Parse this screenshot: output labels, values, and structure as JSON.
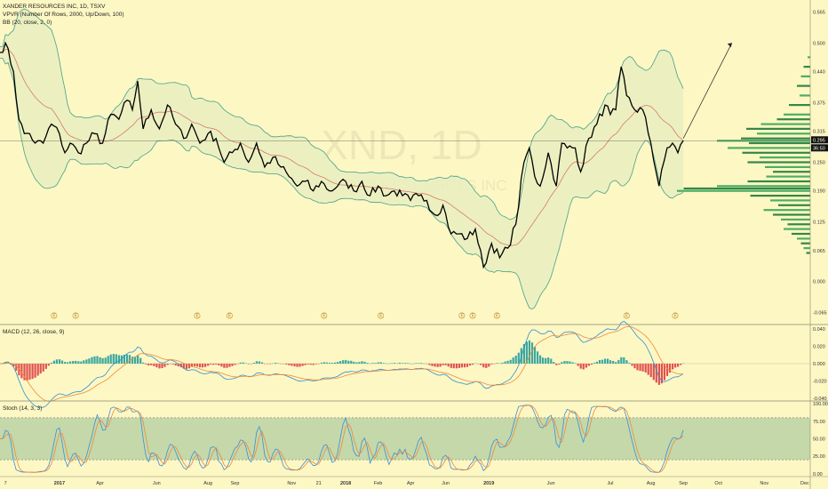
{
  "header": {
    "symbol_line": "XANDER RESOURCES INC, 1D, TSXV",
    "vpvr_line": "VPVR (Number Of Rows, 2000, Up/Down, 100)",
    "bb_line": "BB (20, close, 2, 0)",
    "macd_line": "MACD (12, 26, close, 9)",
    "stoch_line": "Stoch (14, 3, 3)"
  },
  "watermark": {
    "ticker": "XND, 1D",
    "company": "XANDER RESOURCES INC"
  },
  "price_badge": {
    "value": "0.295",
    "countdown": "36:50"
  },
  "earnings_marker": "E",
  "chart_data": [
    {
      "type": "line",
      "pane": "price",
      "title": "XANDER RESOURCES INC, 1D, TSXV",
      "x_ticks": [
        "7",
        "2017",
        "Apr",
        "Jun",
        "Aug",
        "Sep",
        "Nov",
        "21",
        "2018",
        "Feb",
        "Apr",
        "Jun",
        "2019",
        "Jun",
        "Jul",
        "Aug",
        "Sep",
        "Oct",
        "Nov",
        "Dec"
      ],
      "y_ticks": [
        "0.565",
        "0.500",
        "0.440",
        "0.375",
        "0.315",
        "0.250",
        "0.190",
        "0.125",
        "0.065",
        "0.000",
        "-0.065"
      ],
      "ylim": [
        -0.09,
        0.59
      ],
      "x_index_range": [
        0,
        300
      ],
      "close_anchors": [
        [
          0,
          0.48
        ],
        [
          2,
          0.5
        ],
        [
          5,
          0.44
        ],
        [
          7,
          0.34
        ],
        [
          9,
          0.31
        ],
        [
          11,
          0.31
        ],
        [
          13,
          0.29
        ],
        [
          16,
          0.29
        ],
        [
          19,
          0.33
        ],
        [
          22,
          0.31
        ],
        [
          24,
          0.27
        ],
        [
          26,
          0.29
        ],
        [
          29,
          0.27
        ],
        [
          32,
          0.29
        ],
        [
          35,
          0.31
        ],
        [
          38,
          0.29
        ],
        [
          41,
          0.35
        ],
        [
          44,
          0.34
        ],
        [
          47,
          0.38
        ],
        [
          49,
          0.36
        ],
        [
          51,
          0.42
        ],
        [
          53,
          0.32
        ],
        [
          56,
          0.36
        ],
        [
          59,
          0.32
        ],
        [
          62,
          0.37
        ],
        [
          65,
          0.33
        ],
        [
          68,
          0.3
        ],
        [
          71,
          0.33
        ],
        [
          74,
          0.29
        ],
        [
          77,
          0.31
        ],
        [
          80,
          0.3
        ],
        [
          83,
          0.25
        ],
        [
          86,
          0.27
        ],
        [
          89,
          0.29
        ],
        [
          92,
          0.25
        ],
        [
          95,
          0.29
        ],
        [
          98,
          0.24
        ],
        [
          101,
          0.26
        ],
        [
          104,
          0.24
        ],
        [
          107,
          0.22
        ],
        [
          110,
          0.2
        ],
        [
          113,
          0.21
        ],
        [
          116,
          0.19
        ],
        [
          119,
          0.21
        ],
        [
          122,
          0.19
        ],
        [
          125,
          0.2
        ],
        [
          128,
          0.21
        ],
        [
          131,
          0.19
        ],
        [
          134,
          0.21
        ],
        [
          137,
          0.18
        ],
        [
          140,
          0.2
        ],
        [
          143,
          0.18
        ],
        [
          146,
          0.19
        ],
        [
          149,
          0.18
        ],
        [
          152,
          0.17
        ],
        [
          155,
          0.18
        ],
        [
          158,
          0.17
        ],
        [
          161,
          0.14
        ],
        [
          164,
          0.16
        ],
        [
          167,
          0.1
        ],
        [
          170,
          0.1
        ],
        [
          173,
          0.09
        ],
        [
          176,
          0.11
        ],
        [
          179,
          0.03
        ],
        [
          182,
          0.08
        ],
        [
          185,
          0.05
        ],
        [
          188,
          0.07
        ],
        [
          191,
          0.12
        ],
        [
          194,
          0.25
        ],
        [
          196,
          0.28
        ],
        [
          198,
          0.22
        ],
        [
          200,
          0.2
        ],
        [
          203,
          0.27
        ],
        [
          206,
          0.2
        ],
        [
          208,
          0.29
        ],
        [
          210,
          0.28
        ],
        [
          213,
          0.28
        ],
        [
          215,
          0.23
        ],
        [
          218,
          0.3
        ],
        [
          221,
          0.33
        ],
        [
          224,
          0.37
        ],
        [
          226,
          0.35
        ],
        [
          228,
          0.36
        ],
        [
          230,
          0.45
        ],
        [
          232,
          0.39
        ],
        [
          235,
          0.36
        ],
        [
          238,
          0.36
        ],
        [
          241,
          0.29
        ],
        [
          244,
          0.2
        ],
        [
          247,
          0.28
        ],
        [
          249,
          0.29
        ],
        [
          251,
          0.27
        ],
        [
          253,
          0.295
        ]
      ],
      "bollinger": {
        "period": 20,
        "stddev": 2
      },
      "trend_arrow": {
        "from": [
          253,
          0.3
        ],
        "to": [
          271,
          0.5
        ]
      },
      "last_price": 0.295,
      "earnings_indices": [
        20,
        28,
        73,
        85,
        120,
        141,
        171,
        175,
        184,
        232,
        250
      ]
    },
    {
      "type": "histogram",
      "pane": "price",
      "title": "VPVR (Number Of Rows, 2000, Up/Down, 100)",
      "volume_profile": [
        [
          0.47,
          0.02
        ],
        [
          0.45,
          0.05
        ],
        [
          0.43,
          0.07
        ],
        [
          0.41,
          0.1
        ],
        [
          0.39,
          0.08
        ],
        [
          0.37,
          0.16
        ],
        [
          0.35,
          0.2
        ],
        [
          0.34,
          0.25
        ],
        [
          0.33,
          0.37
        ],
        [
          0.32,
          0.48
        ],
        [
          0.31,
          0.4
        ],
        [
          0.3,
          0.52
        ],
        [
          0.295,
          0.7
        ],
        [
          0.29,
          0.46
        ],
        [
          0.28,
          0.62
        ],
        [
          0.27,
          0.51
        ],
        [
          0.26,
          0.38
        ],
        [
          0.25,
          0.47
        ],
        [
          0.24,
          0.34
        ],
        [
          0.23,
          0.28
        ],
        [
          0.22,
          0.33
        ],
        [
          0.21,
          0.47
        ],
        [
          0.2,
          0.7
        ],
        [
          0.195,
          0.95
        ],
        [
          0.19,
          1.0
        ],
        [
          0.18,
          0.45
        ],
        [
          0.17,
          0.3
        ],
        [
          0.16,
          0.24
        ],
        [
          0.15,
          0.35
        ],
        [
          0.14,
          0.28
        ],
        [
          0.13,
          0.22
        ],
        [
          0.12,
          0.17
        ],
        [
          0.11,
          0.2
        ],
        [
          0.1,
          0.14
        ],
        [
          0.09,
          0.1
        ],
        [
          0.08,
          0.07
        ],
        [
          0.07,
          0.05
        ],
        [
          0.06,
          0.03
        ]
      ]
    },
    {
      "type": "line",
      "pane": "macd",
      "title": "MACD (12, 26, close, 9)",
      "y_ticks": [
        "0.040",
        "0.020",
        "0.000",
        "-0.020",
        "-0.040"
      ],
      "ylim": [
        -0.043,
        0.045
      ]
    },
    {
      "type": "line",
      "pane": "stoch",
      "title": "Stoch (14, 3, 3)",
      "y_ticks": [
        "100.00",
        "75.00",
        "50.00",
        "25.00",
        "0.00"
      ],
      "ylim": [
        -4,
        104
      ],
      "band": [
        20,
        80
      ]
    }
  ],
  "colors": {
    "background": "#fdf7c4",
    "price_line": "#000000",
    "bb_band": "#46a08a",
    "bb_basis": "#d47a6a",
    "bb_fill": "#e9eec0",
    "vpvr_up": "#3aa55a",
    "vpvr_down": "#1e7a3a",
    "macd_line": "#2f8fd0",
    "signal_line": "#f08a3a",
    "hist_up": "#3aa8a0",
    "hist_down": "#e05252",
    "stoch_k": "#3a8fd8",
    "stoch_d": "#f0883a",
    "stoch_band": "#9ec39a"
  }
}
